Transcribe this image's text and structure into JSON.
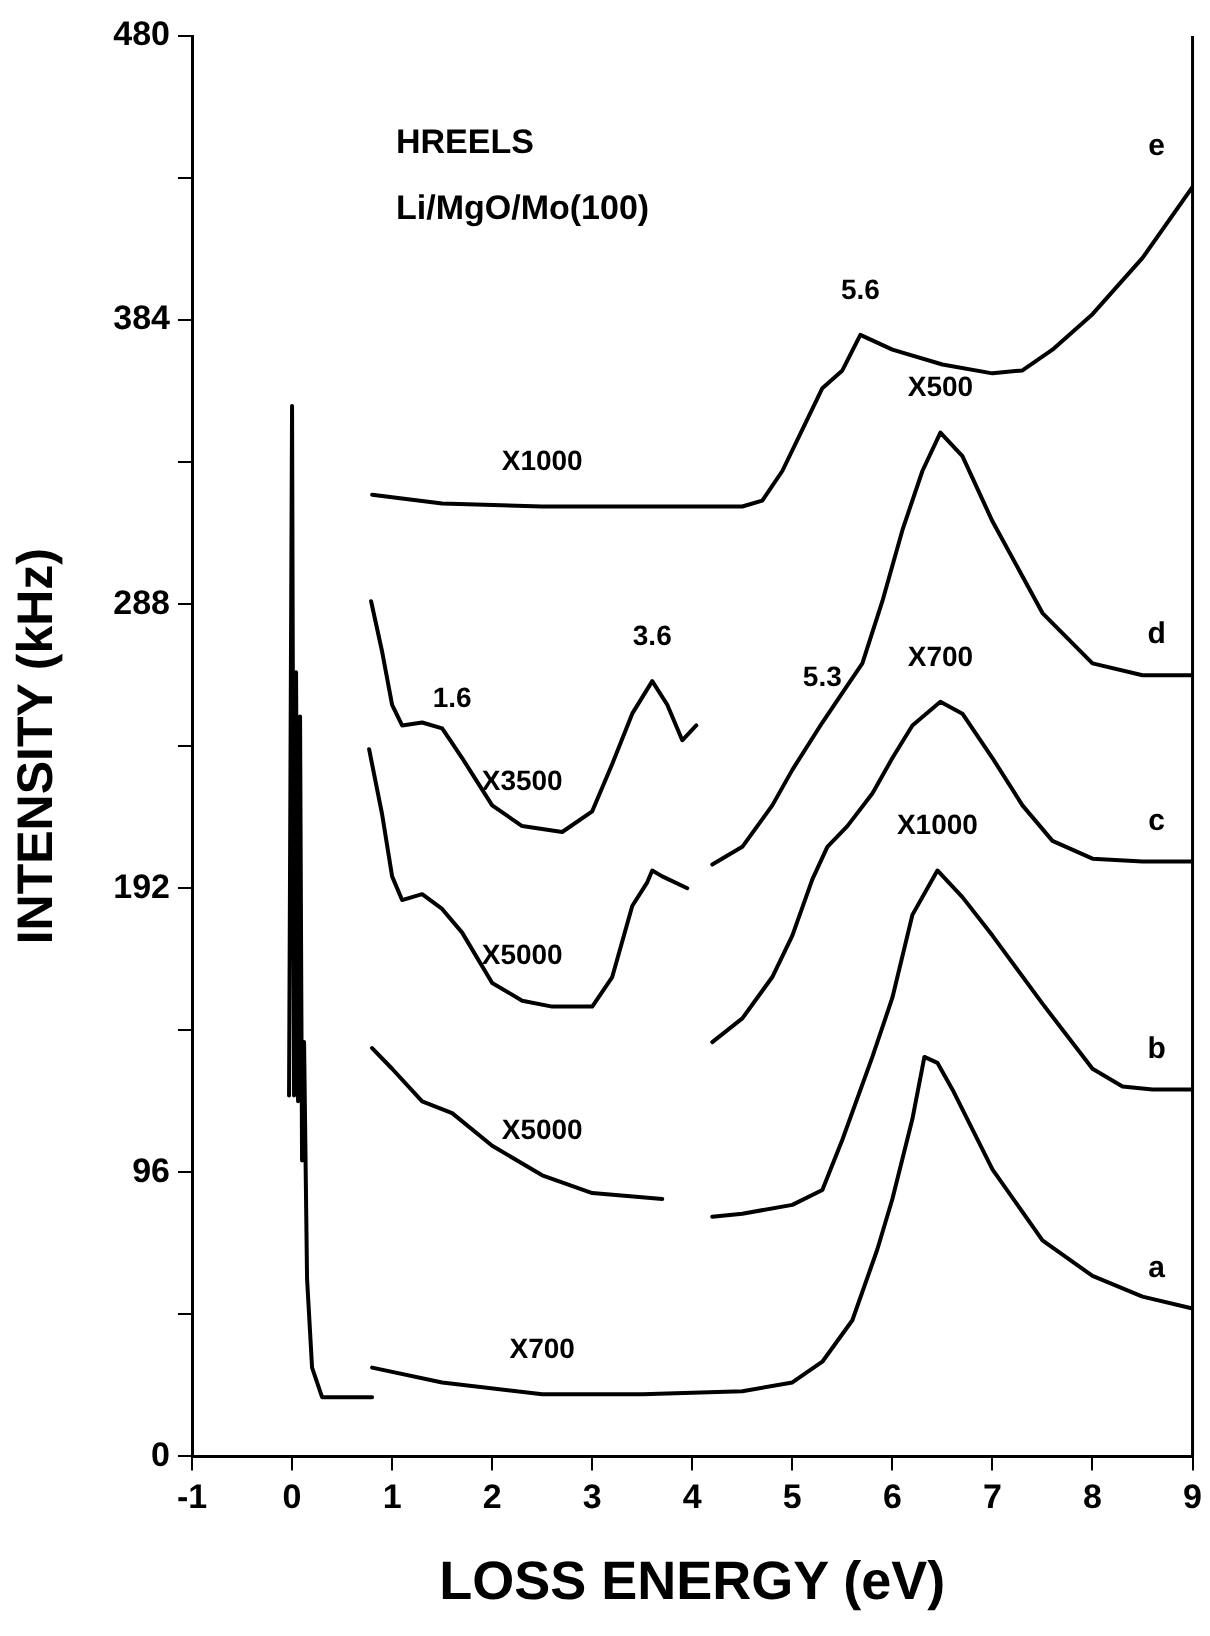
{
  "chart_data": {
    "type": "line",
    "xlabel": "LOSS ENERGY (eV)",
    "ylabel": "INTENSITY (kHz)",
    "xlim": [
      -1,
      9
    ],
    "xticks": [
      -1,
      0,
      1,
      2,
      3,
      4,
      5,
      6,
      7,
      8,
      9
    ],
    "ylim": [
      0,
      480
    ],
    "yticks": [
      0,
      {
        "value": 48,
        "label": null
      },
      96,
      {
        "value": 144,
        "label": null
      },
      192,
      {
        "value": 240,
        "label": null
      },
      288,
      {
        "value": 336,
        "label": null
      },
      384,
      {
        "value": 432,
        "label": null
      },
      480
    ],
    "line_style": "solid",
    "series": [
      {
        "color": "#000000",
        "x": [
          -0.03,
          0,
          0.02,
          0.04,
          0.06,
          0.08,
          0.1,
          0.12,
          0.15,
          0.2,
          0.3,
          0.5,
          0.8
        ],
        "values": [
          122,
          355,
          122,
          265,
          120,
          250,
          100,
          140,
          60,
          30,
          20,
          20,
          20
        ]
      },
      {
        "name": "a",
        "color": "#000000",
        "x": [
          0.8,
          1.5,
          2.5,
          3.5,
          4.5,
          5,
          5.3,
          5.6,
          5.85,
          6,
          6.2,
          6.32,
          6.45,
          6.6,
          7,
          7.5,
          8,
          8.5,
          9
        ],
        "values": [
          30,
          25,
          21,
          21,
          22,
          25,
          32,
          46,
          70,
          87,
          114,
          135,
          133,
          124,
          97,
          73,
          61,
          54,
          50
        ]
      },
      {
        "name": "b",
        "color": "#000000",
        "x": [
          0.8,
          1,
          1.3,
          1.6,
          2,
          2.5,
          3,
          3.7,
          4,
          4.2,
          4.5,
          5,
          5.3,
          5.5,
          5.8,
          6,
          6.2,
          6.45,
          6.7,
          7,
          7.5,
          8,
          8.3,
          8.6,
          9
        ],
        "values": [
          138,
          131,
          120,
          116,
          105,
          95,
          89,
          87,
          null,
          81,
          82,
          85,
          90,
          107,
          135,
          155,
          183,
          198,
          189,
          176,
          153,
          131,
          125,
          124,
          124
        ]
      },
      {
        "name": "c",
        "color": "#000000",
        "x": [
          0.77,
          0.9,
          1,
          1.1,
          1.3,
          1.5,
          1.7,
          2,
          2.3,
          2.6,
          3,
          3.2,
          3.4,
          3.55,
          3.6,
          3.7,
          3.95,
          4.1,
          4.2,
          4.5,
          4.8,
          5,
          5.2,
          5.35,
          5.55,
          5.8,
          6,
          6.2,
          6.48,
          6.7,
          7,
          7.3,
          7.6,
          8,
          8.5,
          9
        ],
        "values": [
          239,
          217,
          196,
          188,
          190,
          185,
          177,
          160,
          154,
          152,
          152,
          162,
          186,
          194,
          198,
          196,
          192,
          null,
          140,
          148,
          162,
          176,
          195,
          206,
          213,
          224,
          236,
          247,
          255,
          251,
          236,
          220,
          208,
          202,
          201,
          201
        ]
      },
      {
        "name": "d",
        "color": "#000000",
        "x": [
          0.79,
          0.9,
          1,
          1.1,
          1.3,
          1.5,
          1.6,
          1.7,
          2,
          2.3,
          2.7,
          3,
          3.2,
          3.4,
          3.6,
          3.75,
          3.9,
          4.04,
          4.1,
          4.2,
          4.5,
          4.8,
          5,
          5.3,
          5.5,
          5.7,
          5.9,
          6.1,
          6.3,
          6.48,
          6.7,
          7,
          7.5,
          8,
          8.5,
          9
        ],
        "values": [
          289,
          272,
          254,
          247,
          248,
          246,
          241,
          236,
          220,
          213,
          211,
          218,
          234,
          251,
          262,
          254,
          242,
          247,
          null,
          200,
          206,
          220,
          232,
          248,
          258,
          268,
          289,
          313,
          333,
          346,
          338,
          316,
          285,
          268,
          264,
          264
        ]
      },
      {
        "name": "e",
        "color": "#000000",
        "x": [
          0.8,
          1.5,
          2.5,
          3.5,
          4.5,
          4.7,
          4.9,
          5.1,
          5.3,
          5.5,
          5.68,
          6,
          6.5,
          7,
          7.3,
          7.6,
          8,
          8.5,
          9
        ],
        "values": [
          325,
          322,
          321,
          321,
          321,
          323,
          333,
          347,
          361,
          367,
          379,
          374,
          369,
          366,
          367,
          374,
          386,
          405,
          429
        ]
      }
    ],
    "annotations": [
      "HREELS",
      "Li/MgO/Mo(100)",
      {
        "text": "5.6",
        "x": 5.68,
        "y": 379
      },
      {
        "text": "1.6",
        "x": 1.6,
        "y": 241
      },
      {
        "text": "3.6",
        "x": 3.6,
        "y": 262
      },
      {
        "text": "5.3",
        "x": 5.3,
        "y": 248
      },
      {
        "text": "X1000",
        "x": 2.5,
        "y": 321
      },
      {
        "text": "X500",
        "x": 6.48,
        "y": 346
      },
      {
        "text": "X700",
        "x": 6.48,
        "y": 255
      },
      {
        "text": "X3500",
        "x": 2.3,
        "y": 213
      },
      {
        "text": "X1000",
        "x": 6.45,
        "y": 198
      },
      {
        "text": "X5000",
        "x": 2.3,
        "y": 154
      },
      {
        "text": "X5000",
        "x": 2.5,
        "y": 95
      },
      {
        "text": "X700",
        "x": 2.5,
        "y": 21
      }
    ]
  }
}
